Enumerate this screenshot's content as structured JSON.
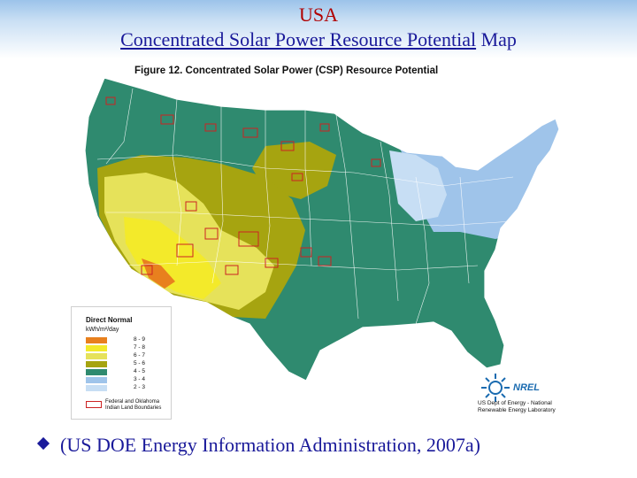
{
  "slide": {
    "title_line1": "USA",
    "title_line2_underlined": "Concentrated Solar Power Resource Potential",
    "title_line2_rest": " Map",
    "caption": "(US DOE Energy Information Administration, 2007a)"
  },
  "figure": {
    "title": "Figure 12.  Concentrated Solar Power (CSP) Resource Potential"
  },
  "legend": {
    "title": "Direct Normal",
    "unit": "kWh/m²/day",
    "classes": [
      {
        "label": "8 - 9",
        "color": "#e8801e"
      },
      {
        "label": "7 - 8",
        "color": "#f3ea2a"
      },
      {
        "label": "6 - 7",
        "color": "#e6e25a"
      },
      {
        "label": "5 - 6",
        "color": "#a6a410"
      },
      {
        "label": "4 - 5",
        "color": "#2f8a6f"
      },
      {
        "label": "3 - 4",
        "color": "#9fc4ea"
      },
      {
        "label": "2 - 3",
        "color": "#c7def4"
      }
    ],
    "land_label": "Federal and Oklahoma Indian Land Boundaries",
    "land_color": "#cc2222"
  },
  "credit": {
    "logo_text": "NREL",
    "line1": "US Dept of Energy - National",
    "line2": "Renewable Energy Laboratory"
  }
}
